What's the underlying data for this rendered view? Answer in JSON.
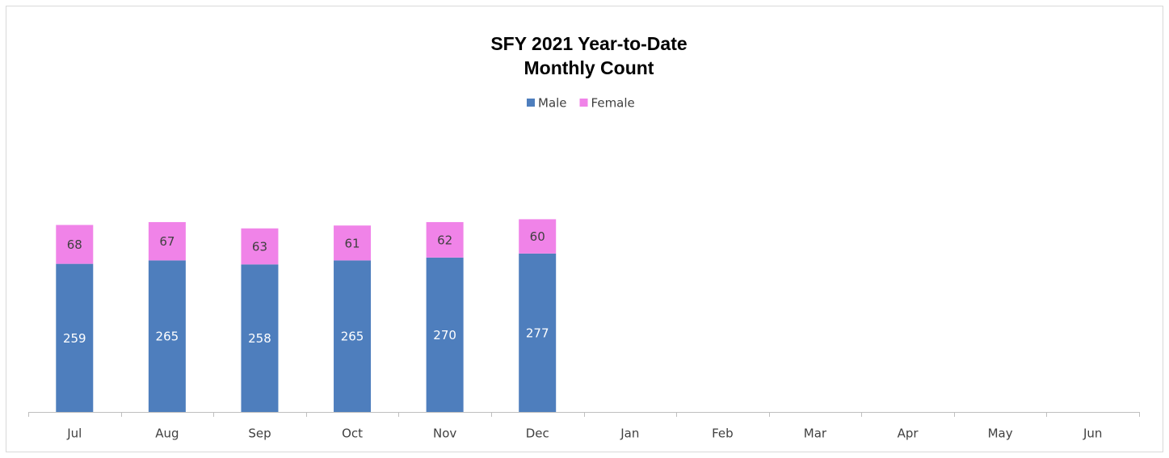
{
  "chart_data": {
    "type": "stacked-bar",
    "title": [
      "SFY 2021 Year-to-Date",
      "Monthly Count"
    ],
    "categories": [
      "Jul",
      "Aug",
      "Sep",
      "Oct",
      "Nov",
      "Dec",
      "Jan",
      "Feb",
      "Mar",
      "Apr",
      "May",
      "Jun"
    ],
    "series": [
      {
        "name": "Male",
        "color": "#4e7ebd",
        "values": [
          259,
          265,
          258,
          265,
          270,
          277,
          null,
          null,
          null,
          null,
          null,
          null
        ]
      },
      {
        "name": "Female",
        "color": "#f083e8",
        "values": [
          68,
          67,
          63,
          61,
          62,
          60,
          null,
          null,
          null,
          null,
          null,
          null
        ]
      }
    ],
    "ylim": [
      0,
      500
    ],
    "legend": "top"
  }
}
